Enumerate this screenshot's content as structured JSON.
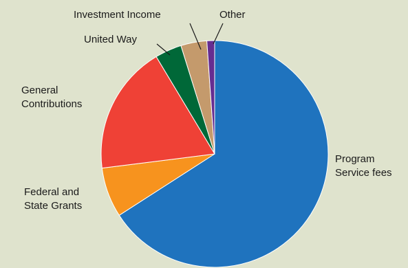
{
  "chart_data": {
    "type": "pie",
    "title": "",
    "legend": "none",
    "slices": [
      {
        "label": "Program Service fees",
        "label_lines": [
          "Program",
          "Service fees"
        ],
        "value": 65.9,
        "color": "#1f73be"
      },
      {
        "label": "Federal and State Grants",
        "label_lines": [
          "Federal and",
          "State Grants"
        ],
        "value": 7.1,
        "color": "#f7931e"
      },
      {
        "label": "General Contributions",
        "label_lines": [
          "General",
          "Contributions"
        ],
        "value": 18.4,
        "color": "#ef4136"
      },
      {
        "label": "United Way",
        "label_lines": [
          "United Way"
        ],
        "value": 3.8,
        "color": "#006838"
      },
      {
        "label": "Investment Income",
        "label_lines": [
          "Investment Income"
        ],
        "value": 3.7,
        "color": "#c49a6c"
      },
      {
        "label": "Other",
        "label_lines": [
          "Other"
        ],
        "value": 1.1,
        "color": "#662d91"
      }
    ]
  }
}
